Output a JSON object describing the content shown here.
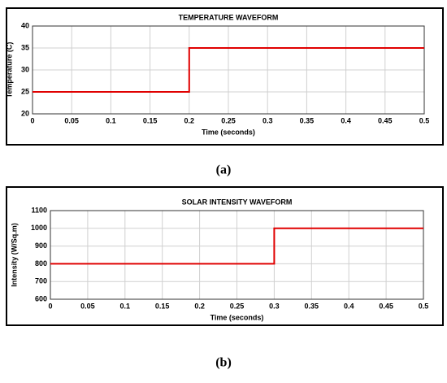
{
  "chart_data": [
    {
      "type": "line",
      "title": "TEMPERATURE WAVEFORM",
      "xlabel": "Time (seconds)",
      "ylabel": "Temperature (C)",
      "caption": "(a)",
      "x": [
        0,
        0.2,
        0.2,
        0.5
      ],
      "series": [
        {
          "color": "#e00000",
          "values": [
            25,
            25,
            35,
            35
          ]
        }
      ],
      "xlim": [
        0,
        0.5
      ],
      "xticks": [
        0,
        0.05,
        0.1,
        0.15,
        0.2,
        0.25,
        0.3,
        0.35,
        0.4,
        0.45,
        0.5
      ],
      "ylim": [
        20,
        40
      ],
      "yticks": [
        20,
        25,
        30,
        35,
        40
      ],
      "grid": true
    },
    {
      "type": "line",
      "title": "SOLAR INTENSITY WAVEFORM",
      "xlabel": "Time (seconds)",
      "ylabel": "Intensity (W/Sq.m)",
      "caption": "(b)",
      "x": [
        0,
        0.3,
        0.3,
        0.5
      ],
      "series": [
        {
          "color": "#e00000",
          "values": [
            800,
            800,
            1000,
            1000
          ]
        }
      ],
      "xlim": [
        0,
        0.5
      ],
      "xticks": [
        0,
        0.05,
        0.1,
        0.15,
        0.2,
        0.25,
        0.3,
        0.35,
        0.4,
        0.45,
        0.5
      ],
      "ylim": [
        600,
        1100
      ],
      "yticks": [
        600,
        700,
        800,
        900,
        1000,
        1100
      ],
      "grid": true
    }
  ]
}
